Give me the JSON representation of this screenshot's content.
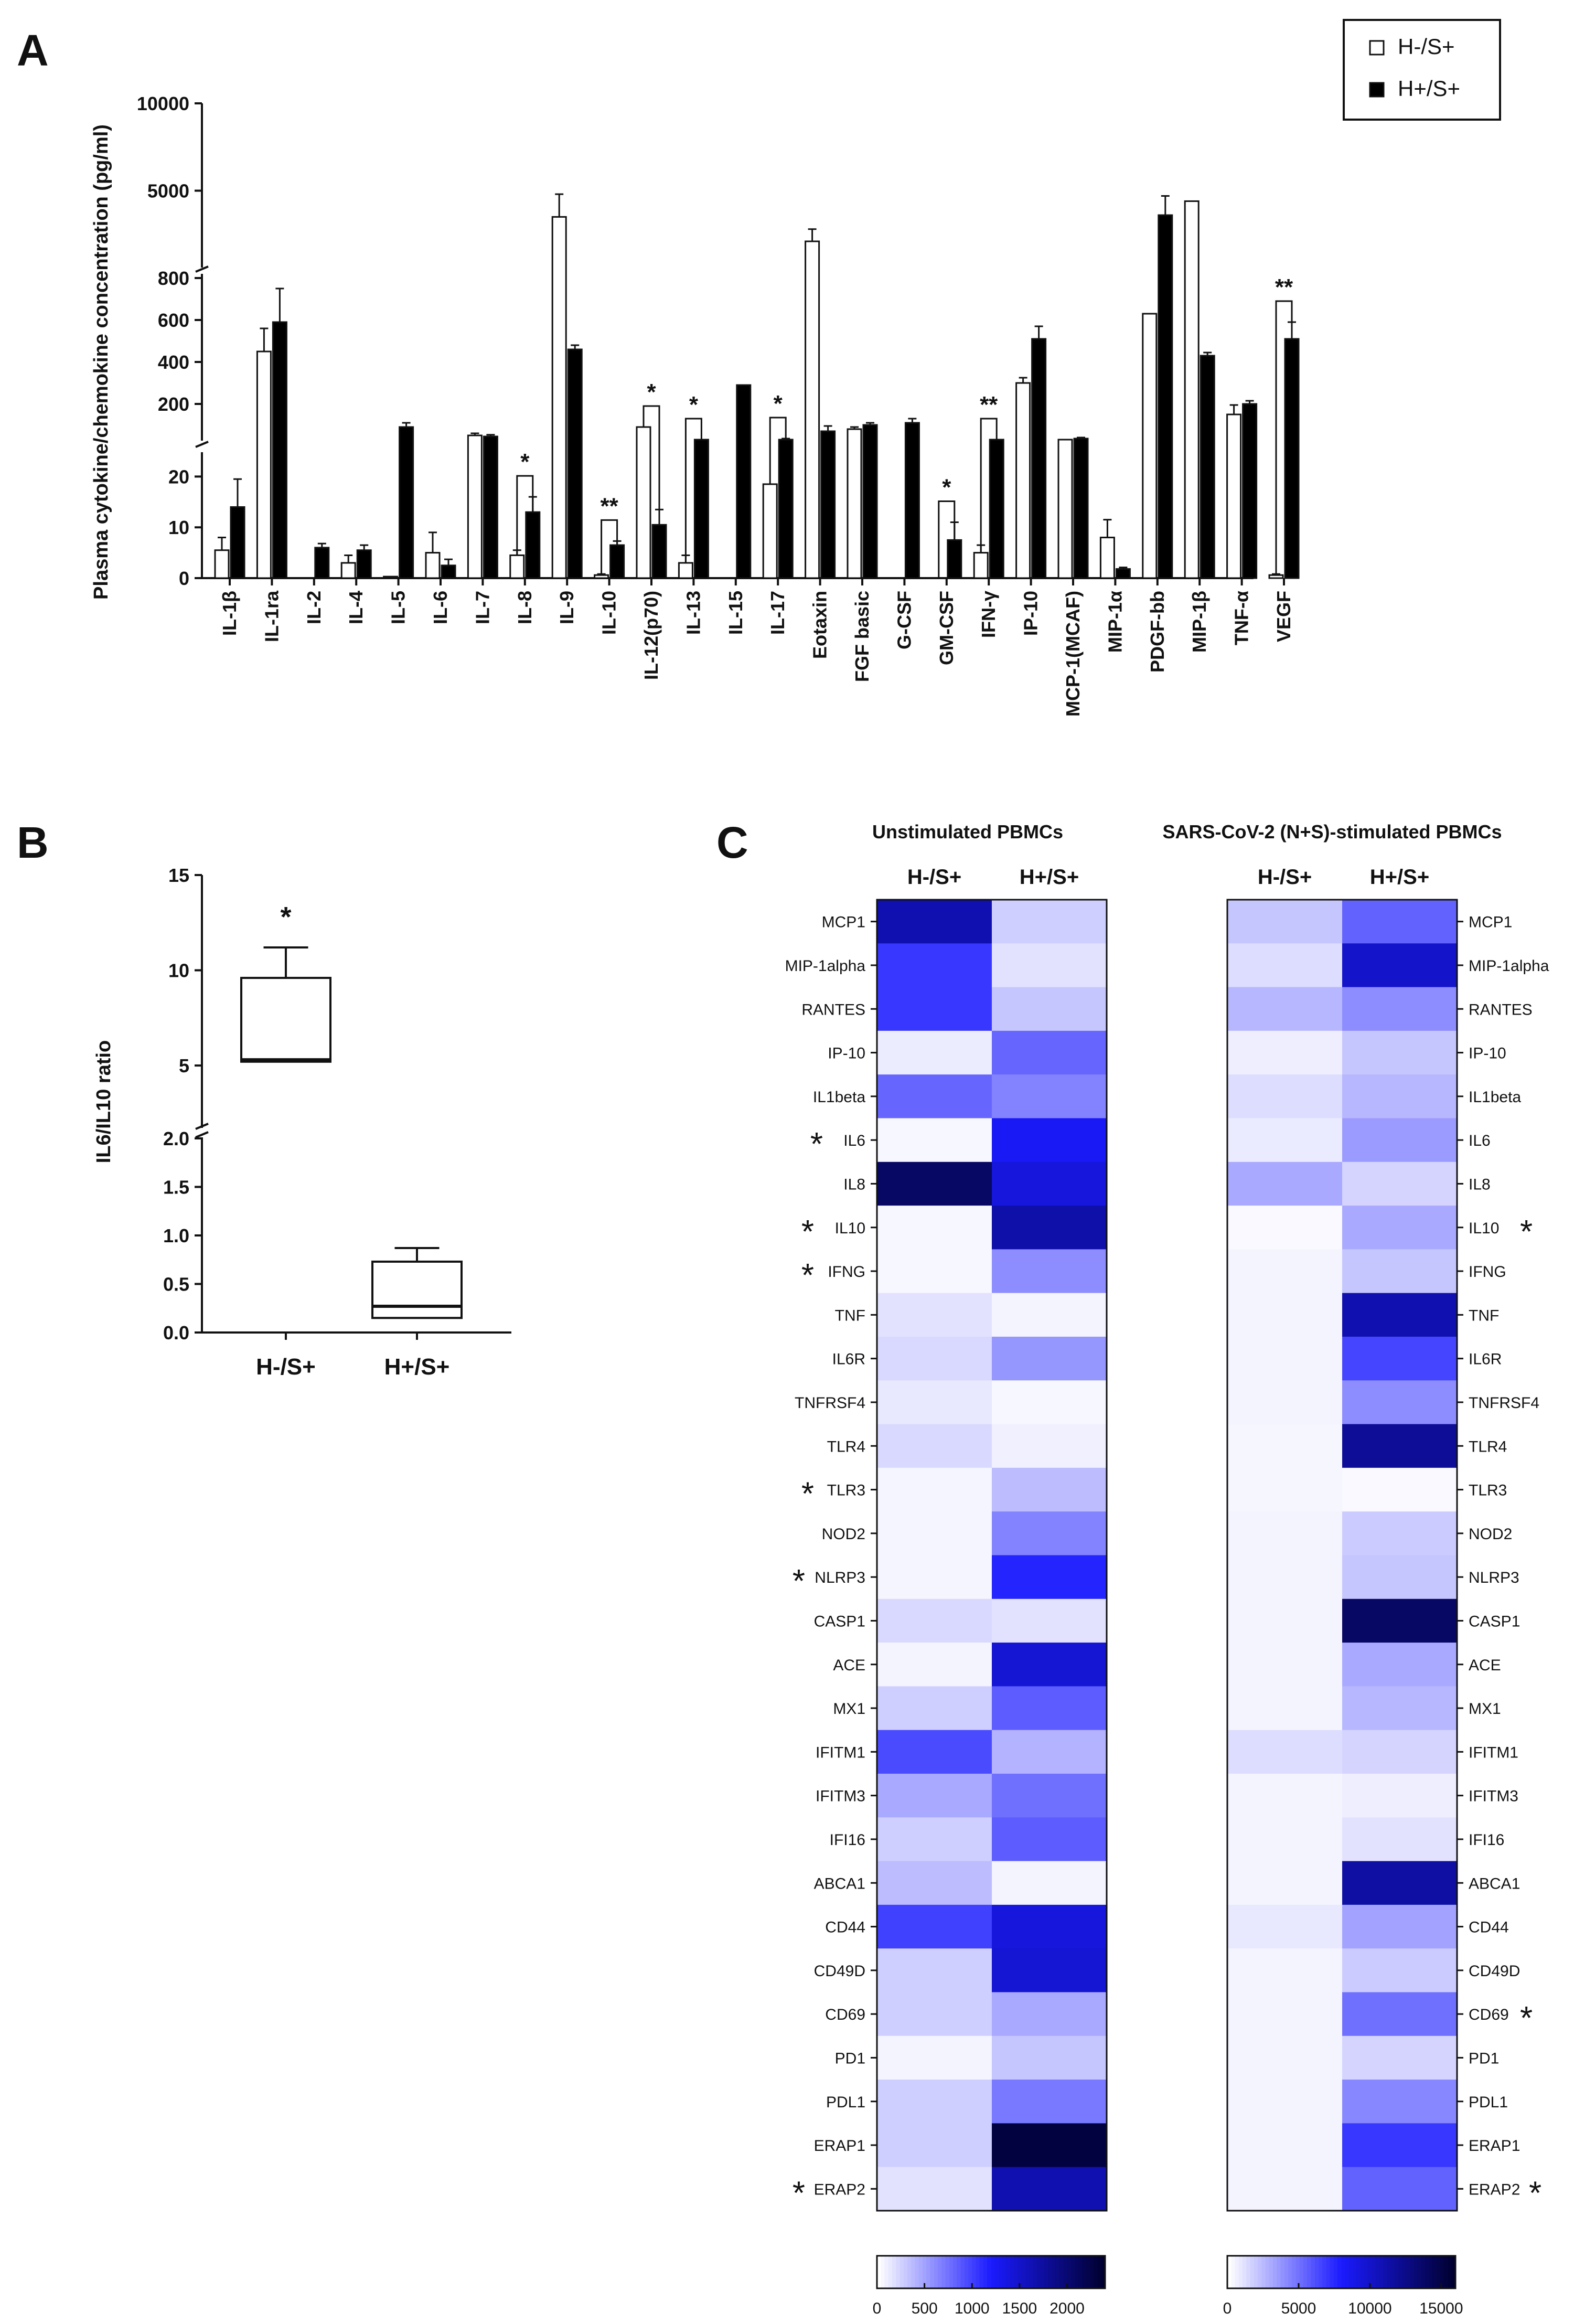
{
  "panel_labels": {
    "a": "A",
    "b": "B",
    "c": "C"
  },
  "legend": {
    "open_label": "H-/S+",
    "filled_label": "H+/S+",
    "open_color": "#ffffff",
    "filled_color": "#000000"
  },
  "colors": {
    "ink": "#111111",
    "heat_low": "#ffffff",
    "heat_mid": "#1a1aff",
    "heat_high": "#000030"
  },
  "chart_data": [
    {
      "type": "bar",
      "panel": "A",
      "ylabel": "Plasma cytokine/chemokine concentration (pg/ml)",
      "xlabel": "",
      "axis_breaks": [
        {
          "segment": "lower",
          "ylim": [
            0,
            25
          ],
          "ticks": [
            0,
            10,
            20
          ]
        },
        {
          "segment": "middle",
          "ylim": [
            0,
            800
          ],
          "ticks": [
            200,
            400,
            600,
            800
          ]
        },
        {
          "segment": "upper",
          "ylim": [
            900,
            10000
          ],
          "ticks": [
            5000,
            10000
          ]
        }
      ],
      "categories": [
        "IL-1β",
        "IL-1ra",
        "IL-2",
        "IL-4",
        "IL-5",
        "IL-6",
        "IL-7",
        "IL-8",
        "IL-9",
        "IL-10",
        "IL-12(p70)",
        "IL-13",
        "IL-15",
        "IL-17",
        "Eotaxin",
        "FGF basic",
        "G-CSF",
        "GM-CSF",
        "IFN-γ",
        "IP-10",
        "MCP-1(MCAF)",
        "MIP-1α",
        "PDGF-bb",
        "MIP-1β",
        "TNF-α",
        "VEGF"
      ],
      "series": [
        {
          "name": "H-/S+",
          "values": [
            5.5,
            450,
            0,
            3,
            0.3,
            5,
            50,
            4.5,
            3500,
            0.6,
            90,
            3,
            0,
            18.5,
            2100,
            80,
            0,
            0,
            5,
            300,
            30,
            8,
            630,
            4400,
            150,
            0.6
          ],
          "errors": [
            2.5,
            110,
            0,
            1.5,
            0,
            4,
            10,
            1,
            1300,
            0.2,
            0,
            1.5,
            0,
            0,
            700,
            10,
            0,
            0,
            1.5,
            25,
            0,
            3.5,
            0,
            0,
            45,
            0.2
          ]
        },
        {
          "name": "H+/S+",
          "values": [
            14,
            590,
            6,
            5.5,
            90,
            2.5,
            45,
            13,
            460,
            6.5,
            10.5,
            30,
            290,
            30,
            70,
            100,
            110,
            7.5,
            30,
            510,
            35,
            1.8,
            3600,
            430,
            200,
            510
          ],
          "errors": [
            5.5,
            160,
            0.8,
            1,
            20,
            1.2,
            8,
            3,
            20,
            0.8,
            3,
            0,
            0,
            5,
            25,
            10,
            20,
            3.5,
            0,
            60,
            5,
            0.3,
            1100,
            15,
            15,
            80
          ]
        }
      ],
      "significance": [
        "",
        "",
        "",
        "",
        "",
        "",
        "",
        "*",
        "",
        "**",
        "*",
        "*",
        "",
        "*",
        "",
        "",
        "",
        "*",
        "**",
        "",
        "",
        "",
        "",
        "",
        "",
        "**"
      ]
    },
    {
      "type": "box",
      "panel": "B",
      "ylabel": "IL6/IL10 ratio",
      "xlabel": "",
      "axis_breaks": [
        {
          "segment": "lower",
          "ylim": [
            0,
            2.0
          ],
          "ticks": [
            0.0,
            0.5,
            1.0,
            1.5,
            2.0
          ]
        },
        {
          "segment": "upper",
          "ylim": [
            2.0,
            15
          ],
          "ticks": [
            5,
            10,
            15
          ]
        }
      ],
      "categories": [
        "H-/S+",
        "H+/S+"
      ],
      "boxes": [
        {
          "name": "H-/S+",
          "min": 5.2,
          "q1": 5.2,
          "median": 5.3,
          "q3": 9.6,
          "max": 11.2,
          "significance": "*"
        },
        {
          "name": "H+/S+",
          "min": 0.15,
          "q1": 0.15,
          "median": 0.27,
          "q3": 0.73,
          "max": 0.87,
          "significance": ""
        }
      ]
    },
    {
      "type": "heatmap",
      "panel": "C",
      "title": "Unstimulated PBMCs",
      "columns": [
        "H-/S+",
        "H+/S+"
      ],
      "rows": [
        "MCP1",
        "MIP-1alpha",
        "RANTES",
        "IP-10",
        "IL1beta",
        "IL6",
        "IL8",
        "IL10",
        "IFNG",
        "TNF",
        "IL6R",
        "TNFRSF4",
        "TLR4",
        "TLR3",
        "NOD2",
        "NLRP3",
        "CASP1",
        "ACE",
        "MX1",
        "IFITM1",
        "IFITM3",
        "IFI16",
        "ABCA1",
        "CD44",
        "CD49D",
        "CD69",
        "PD1",
        "PDL1",
        "ERAP1",
        "ERAP2"
      ],
      "row_marks": [
        "",
        "",
        "",
        "",
        "",
        "*",
        "",
        "*",
        "*",
        "",
        "",
        "",
        "",
        "*",
        "",
        "*",
        "",
        "",
        "",
        "",
        "",
        "",
        "",
        "",
        "",
        "",
        "",
        "",
        "",
        "*"
      ],
      "values": [
        [
          1650,
          250
        ],
        [
          1050,
          150
        ],
        [
          1050,
          300
        ],
        [
          100,
          800
        ],
        [
          800,
          650
        ],
        [
          40,
          1250
        ],
        [
          2100,
          1400
        ],
        [
          40,
          1700
        ],
        [
          40,
          600
        ],
        [
          150,
          60
        ],
        [
          200,
          550
        ],
        [
          120,
          40
        ],
        [
          200,
          80
        ],
        [
          50,
          350
        ],
        [
          50,
          650
        ],
        [
          50,
          1150
        ],
        [
          200,
          150
        ],
        [
          60,
          1450
        ],
        [
          250,
          850
        ],
        [
          950,
          400
        ],
        [
          450,
          750
        ],
        [
          250,
          850
        ],
        [
          350,
          60
        ],
        [
          1000,
          1400
        ],
        [
          250,
          1450
        ],
        [
          250,
          450
        ],
        [
          60,
          300
        ],
        [
          250,
          700
        ],
        [
          250,
          2300
        ],
        [
          150,
          1650
        ]
      ],
      "colorbar": {
        "range": [
          0,
          2400
        ],
        "ticks": [
          0,
          500,
          1000,
          1500,
          2000
        ]
      }
    },
    {
      "type": "heatmap",
      "panel": "C",
      "title": "SARS-CoV-2 (N+S)-stimulated PBMCs",
      "columns": [
        "H-/S+",
        "H+/S+"
      ],
      "rows": [
        "MCP1",
        "MIP-1alpha",
        "RANTES",
        "IP-10",
        "IL1beta",
        "IL6",
        "IL8",
        "IL10",
        "IFNG",
        "TNF",
        "IL6R",
        "TNFRSF4",
        "TLR4",
        "TLR3",
        "NOD2",
        "NLRP3",
        "CASP1",
        "ACE",
        "MX1",
        "IFITM1",
        "IFITM3",
        "IFI16",
        "ABCA1",
        "CD44",
        "CD49D",
        "CD69",
        "PD1",
        "PDL1",
        "ERAP1",
        "ERAP2"
      ],
      "row_marks": [
        "",
        "",
        "",
        "",
        "",
        "",
        "",
        "*",
        "",
        "",
        "",
        "",
        "",
        "",
        "",
        "",
        "",
        "",
        "",
        "",
        "",
        "",
        "",
        "",
        "",
        "*",
        "",
        "",
        "",
        "*"
      ],
      "values": [
        [
          2000,
          5500
        ],
        [
          1200,
          10000
        ],
        [
          2500,
          4000
        ],
        [
          600,
          2000
        ],
        [
          1200,
          2500
        ],
        [
          700,
          3500
        ],
        [
          3000,
          1500
        ],
        [
          200,
          3000
        ],
        [
          400,
          2000
        ],
        [
          400,
          11000
        ],
        [
          400,
          6500
        ],
        [
          400,
          4000
        ],
        [
          300,
          12000
        ],
        [
          300,
          200
        ],
        [
          400,
          1800
        ],
        [
          400,
          2000
        ],
        [
          400,
          14000
        ],
        [
          400,
          3000
        ],
        [
          400,
          2500
        ],
        [
          1200,
          1500
        ],
        [
          400,
          600
        ],
        [
          400,
          1000
        ],
        [
          400,
          11500
        ],
        [
          800,
          3200
        ],
        [
          400,
          1800
        ],
        [
          400,
          5000
        ],
        [
          400,
          1500
        ],
        [
          400,
          4200
        ],
        [
          400,
          7000
        ],
        [
          400,
          5500
        ]
      ],
      "colorbar": {
        "range": [
          0,
          16000
        ],
        "ticks": [
          0,
          5000,
          10000,
          15000
        ]
      }
    }
  ]
}
